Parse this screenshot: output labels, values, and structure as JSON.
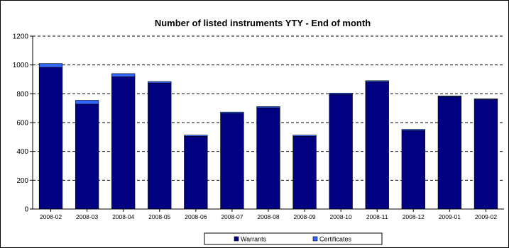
{
  "chart_data": {
    "type": "bar",
    "stacked": true,
    "title": "Number of listed instruments YTY - End of month",
    "categories": [
      "2008-02",
      "2008-03",
      "2008-04",
      "2008-05",
      "2008-06",
      "2008-07",
      "2008-08",
      "2008-09",
      "2008-10",
      "2008-11",
      "2008-12",
      "2009-01",
      "2009-02"
    ],
    "series": [
      {
        "name": "Warrants",
        "color": "#000080",
        "values": [
          983,
          728,
          918,
          875,
          505,
          665,
          703,
          505,
          797,
          883,
          545,
          780,
          760
        ]
      },
      {
        "name": "Certificates",
        "color": "#3366FF",
        "values": [
          27,
          27,
          22,
          10,
          8,
          8,
          8,
          8,
          8,
          8,
          8,
          5,
          5
        ]
      }
    ],
    "ylim": [
      0,
      1200
    ],
    "yticks": [
      0,
      200,
      400,
      600,
      800,
      1000,
      1200
    ],
    "grid": "horizontal-dashed",
    "legend": "bottom"
  }
}
